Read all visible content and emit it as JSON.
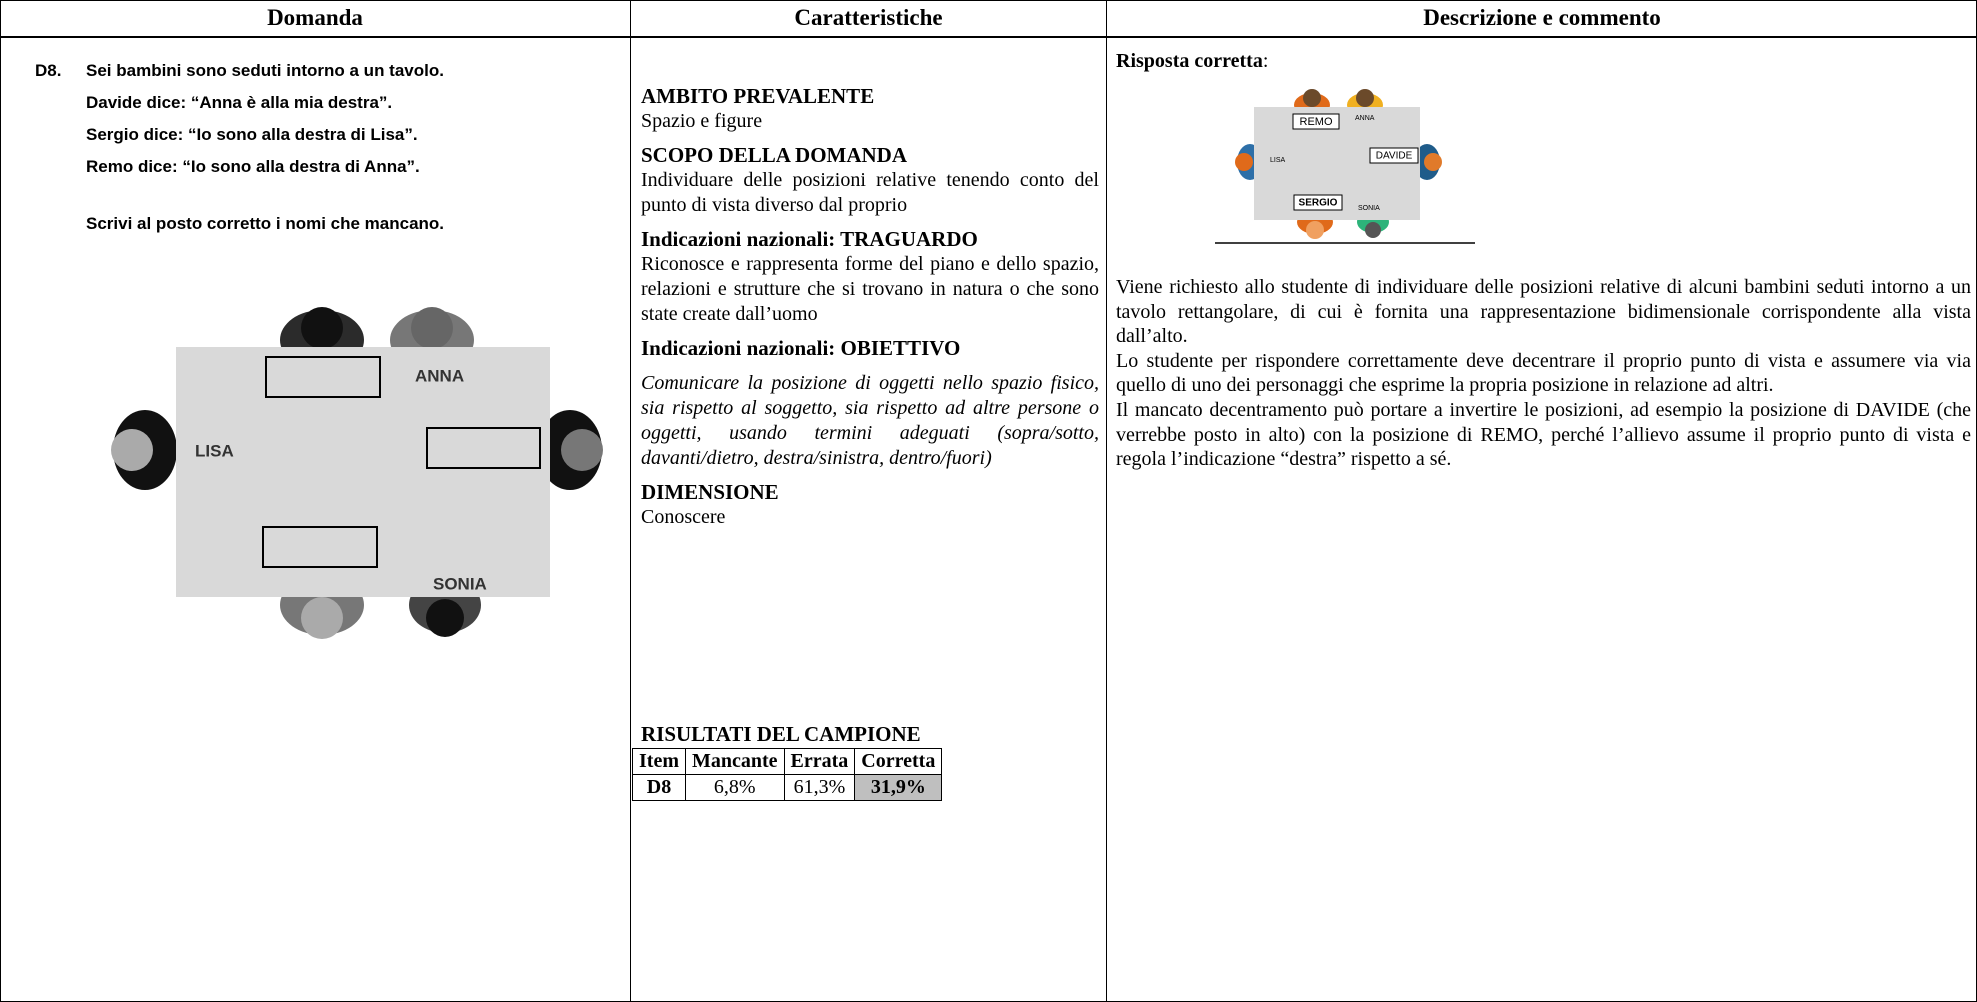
{
  "header": {
    "columns": [
      "Domanda",
      "Caratteristiche",
      "Descrizione e commento"
    ]
  },
  "question": {
    "id": "D8.",
    "lines": [
      "Sei bambini sono seduti intorno a un tavolo.",
      "Davide dice: “Anna è alla mia destra”.",
      "Sergio dice: “Io sono alla destra di Lisa”.",
      "Remo dice: “Io sono alla destra di Anna”."
    ],
    "instruction": "Scrivi al posto corretto i nomi che mancano.",
    "figure_labels": [
      "ANNA",
      "LISA",
      "SONIA"
    ]
  },
  "characteristics": {
    "sections": [
      {
        "heading": "AMBITO PREVALENTE",
        "body": "Spazio e figure"
      },
      {
        "heading": "SCOPO DELLA DOMANDA",
        "body": "Individuare delle posizioni relative tenendo conto del punto di vista diverso dal proprio"
      },
      {
        "heading": "Indicazioni nazionali: TRAGUARDO",
        "body": "Riconosce e rappresenta forme del piano e dello spazio, relazioni e strutture che si trovano in natura o che sono state create dall’uomo"
      },
      {
        "heading": "Indicazioni nazionali: OBIETTIVO",
        "body": "Comunicare la posizione di oggetti nello spazio fisico, sia rispetto al soggetto, sia rispetto ad altre persone o oggetti, usando termini adeguati (sopra/sotto, davanti/dietro, destra/sinistra, dentro/fuori)"
      },
      {
        "heading": "DIMENSIONE",
        "body": "Conoscere"
      }
    ],
    "results": {
      "title": "RISULTATI DEL CAMPIONE",
      "headers": [
        "Item",
        "Mancante",
        "Errata",
        "Corretta"
      ],
      "row": [
        "D8",
        "6,8%",
        "61,3%",
        "31,9%"
      ]
    }
  },
  "description": {
    "answer_label": "Risposta corretta",
    "answer_suffix": ":",
    "figure_labels": [
      "REMO",
      "ANNA",
      "LISA",
      "DAVIDE",
      "SERGIO",
      "SONIA"
    ],
    "paragraphs": [
      "Viene richiesto allo studente di individuare delle posizioni relative di alcuni bambini seduti intorno a un tavolo rettangolare, di cui è fornita una rappresentazione bidimensionale corrispondente alla vista dall’alto.",
      "Lo studente per rispondere correttamente deve decentrare il proprio punto di vista e assumere via via quello di uno dei personaggi che esprime la propria posizione in relazione ad altri.",
      "Il mancato decentramento può portare a invertire le posizioni, ad esempio la posizione di DAVIDE (che verrebbe posto in alto) con la posizione di REMO, perché l’allievo assume il proprio punto di vista e regola l’indicazione “destra” rispetto a sé."
    ]
  }
}
